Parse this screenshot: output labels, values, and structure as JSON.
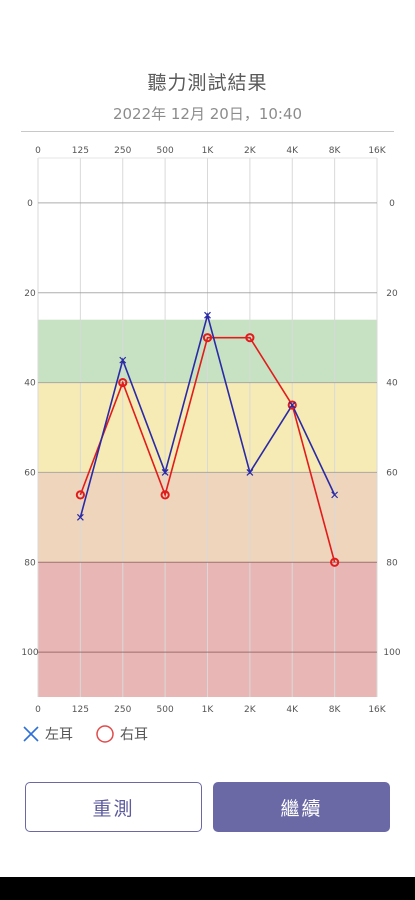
{
  "header": {
    "title": "聽力測試結果",
    "datetime": "2022年 12月 20日，10:40"
  },
  "legend": {
    "left_label": "左耳",
    "right_label": "右耳"
  },
  "buttons": {
    "retest": "重測",
    "continue": "繼續"
  },
  "colors": {
    "left_ear": "#2a2aa6",
    "right_ear": "#e11c1c",
    "band_normal": "#c6e2c3",
    "band_mild": "#f6eab5",
    "band_moderate": "#efd5bb",
    "band_severe": "#e8b7b5",
    "accent": "#6a69a6"
  },
  "chart_data": {
    "type": "line",
    "x_categories": [
      "0",
      "125",
      "250",
      "500",
      "1K",
      "2K",
      "4K",
      "8K",
      "16K"
    ],
    "y_ticks": [
      0,
      20,
      40,
      60,
      80,
      100
    ],
    "ylim": [
      -10,
      110
    ],
    "y_inverted": true,
    "grid": true,
    "legend_position": "bottom-left",
    "bands": [
      {
        "from": 26,
        "to": 40,
        "color": "#c6e2c3"
      },
      {
        "from": 40,
        "to": 60,
        "color": "#f6eab5"
      },
      {
        "from": 60,
        "to": 80,
        "color": "#efd5bb"
      },
      {
        "from": 80,
        "to": 110,
        "color": "#e8b7b5"
      }
    ],
    "series": [
      {
        "name": "左耳",
        "marker": "x",
        "color": "#2a2aa6",
        "x": [
          "125",
          "250",
          "500",
          "1K",
          "2K",
          "4K",
          "8K"
        ],
        "values": [
          70,
          35,
          60,
          25,
          60,
          45,
          65
        ]
      },
      {
        "name": "右耳",
        "marker": "o",
        "color": "#e11c1c",
        "x": [
          "125",
          "250",
          "500",
          "1K",
          "2K",
          "4K",
          "8K"
        ],
        "values": [
          65,
          40,
          65,
          30,
          30,
          45,
          80
        ]
      }
    ]
  }
}
